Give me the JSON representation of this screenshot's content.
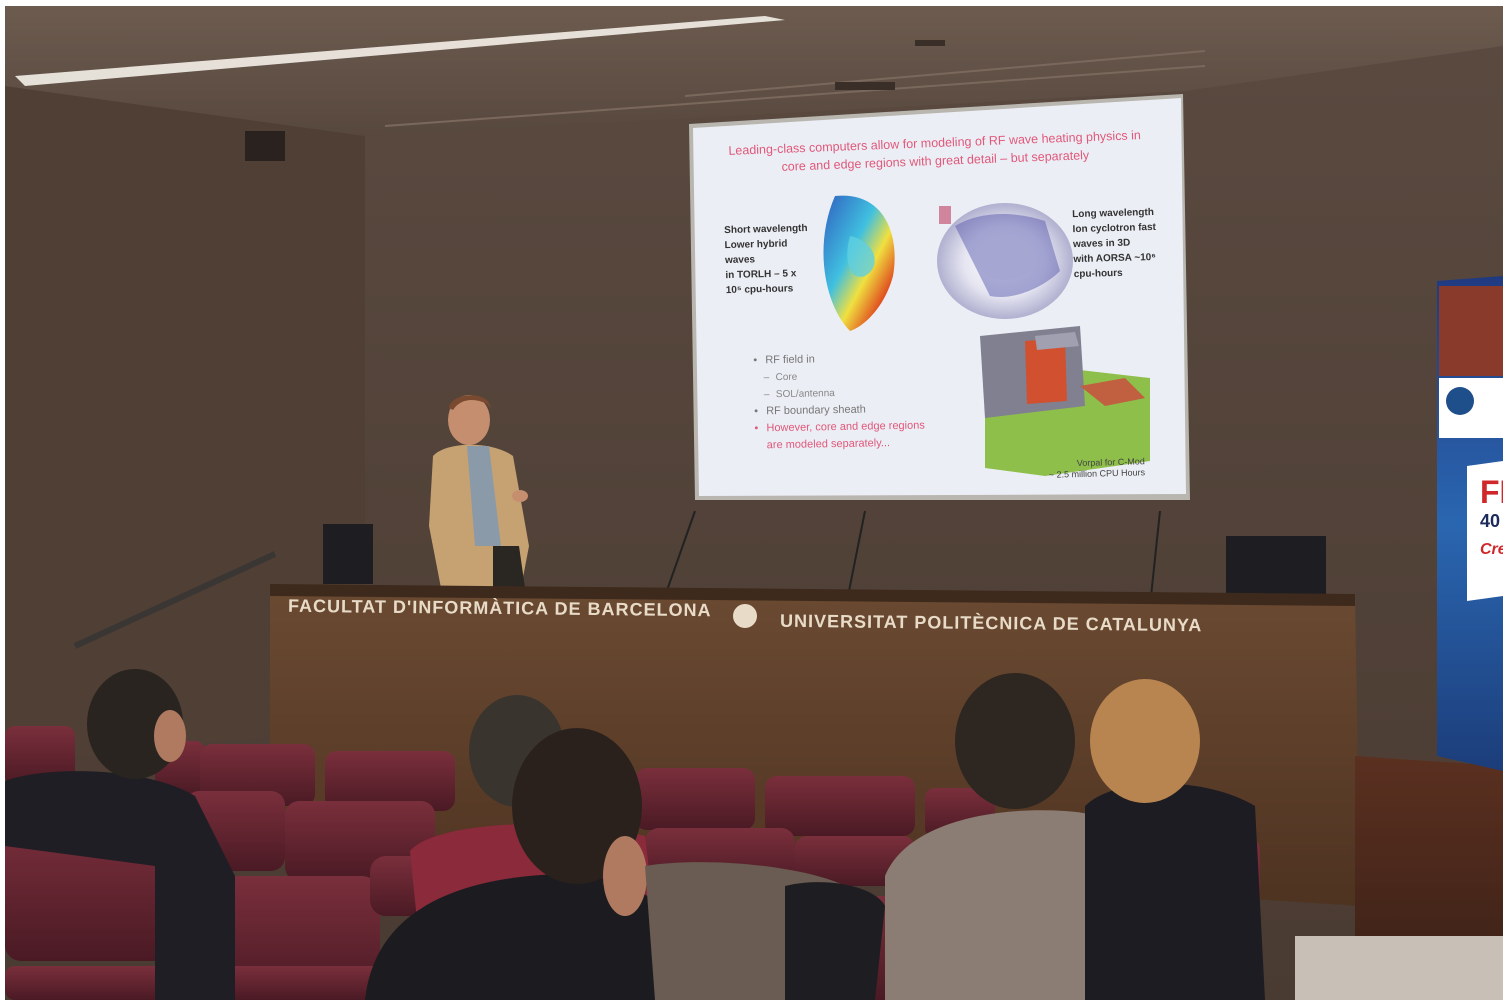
{
  "slide": {
    "title_line1": "Leading-class computers allow for modeling of RF wave heating physics in",
    "title_line2": "core and edge regions with great detail – but separately",
    "left_caption": [
      "Short wavelength",
      "Lower hybrid",
      "waves",
      "in TORLH – 5 x",
      "10⁵ cpu-hours"
    ],
    "right_caption": [
      "Long wavelength",
      "Ion cyclotron fast",
      "waves in 3D",
      "with AORSA ~10⁶",
      "cpu-hours"
    ],
    "bullets": {
      "rf_field": "RF field in",
      "core": "Core",
      "sol": "SOL/antenna",
      "sheath": "RF boundary sheath",
      "however": "However, core and edge regions are modeled separately..."
    },
    "note_line1": "Vorpal for C-Mod",
    "note_line2": "~ 2.5 million CPU Hours"
  },
  "podium": {
    "left_text": "FACULTAT D'INFORMÀTICA DE BARCELONA",
    "right_text": "UNIVERSITAT POLITÈCNICA DE CATALUNYA"
  },
  "banner": {
    "big": "FI",
    "num": "40 a",
    "script": "Cre"
  }
}
